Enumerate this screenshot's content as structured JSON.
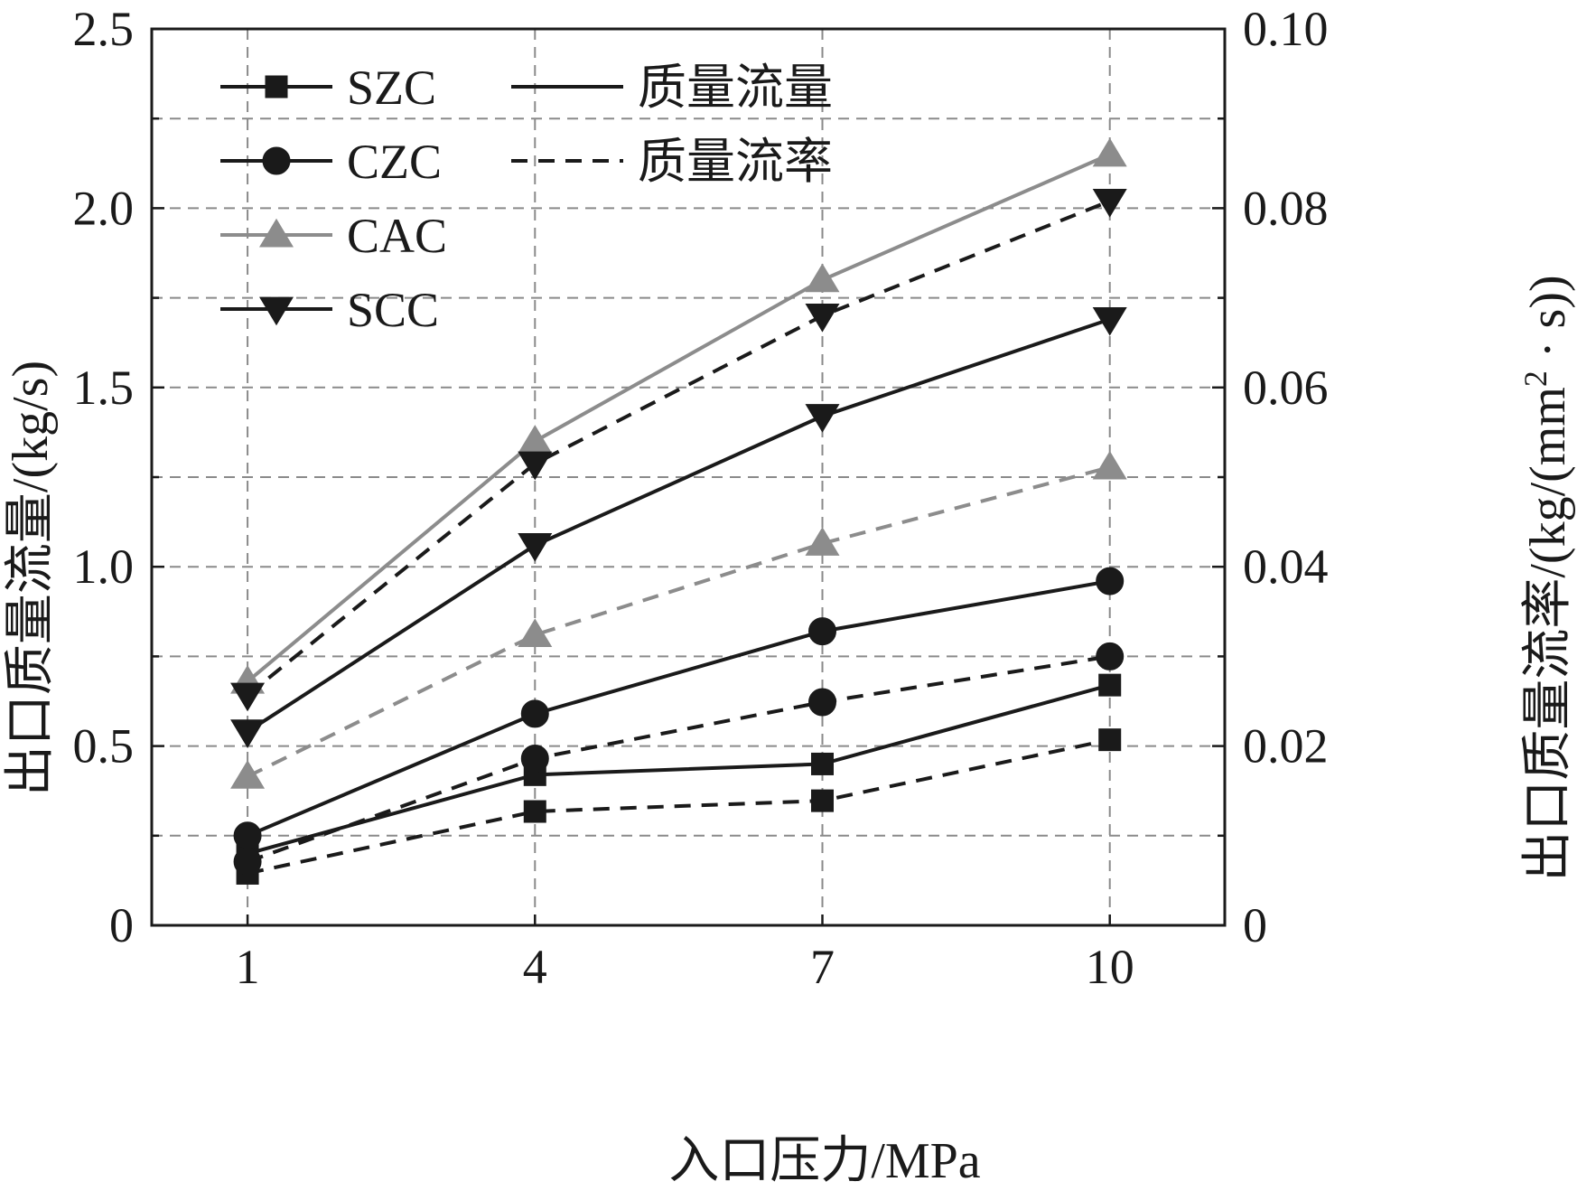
{
  "chart_data": {
    "type": "line",
    "x": [
      1,
      4,
      7,
      10
    ],
    "x_ticks": [
      "1",
      "4",
      "7",
      "10"
    ],
    "xlabel": "入口压力/MPa",
    "ylabel_left": "出口质量流量/(kg/s)",
    "ylabel_right_parts": [
      "出口质量流率/(kg/(mm",
      "2",
      " · s))"
    ],
    "ylim_left": [
      0,
      2.5
    ],
    "ylim_right": [
      0,
      0.1
    ],
    "yticks_left": [
      "0",
      "0.5",
      "1.0",
      "1.5",
      "2.0",
      "2.5"
    ],
    "yticks_right": [
      "0",
      "0.02",
      "0.04",
      "0.06",
      "0.08",
      "0.10"
    ],
    "grid": true,
    "legend_position": "top-left",
    "legend_line_styles": [
      {
        "label": "质量流量",
        "style": "solid"
      },
      {
        "label": "质量流率",
        "style": "dashed"
      }
    ],
    "series": [
      {
        "name": "SZC",
        "color": "#1a1a1a",
        "marker": "square",
        "quantity": "质量流量",
        "axis": "left",
        "dash": false,
        "values": [
          0.2,
          0.42,
          0.45,
          0.67
        ]
      },
      {
        "name": "SZC",
        "color": "#1a1a1a",
        "marker": "square",
        "quantity": "质量流率",
        "axis": "right",
        "dash": true,
        "values": [
          0.0058,
          0.0127,
          0.0139,
          0.0207
        ]
      },
      {
        "name": "CZC",
        "color": "#1a1a1a",
        "marker": "circle",
        "quantity": "质量流量",
        "axis": "left",
        "dash": false,
        "values": [
          0.25,
          0.59,
          0.82,
          0.96
        ]
      },
      {
        "name": "CZC",
        "color": "#1a1a1a",
        "marker": "circle",
        "quantity": "质量流率",
        "axis": "right",
        "dash": true,
        "values": [
          0.0071,
          0.0186,
          0.0249,
          0.03
        ]
      },
      {
        "name": "CAC",
        "color": "#8c8c8c",
        "marker": "triangle-up",
        "quantity": "质量流量",
        "axis": "left",
        "dash": false,
        "values": [
          0.68,
          1.35,
          1.8,
          2.15
        ]
      },
      {
        "name": "CAC",
        "color": "#8c8c8c",
        "marker": "triangle-up",
        "quantity": "质量流率",
        "axis": "right",
        "dash": true,
        "values": [
          0.0166,
          0.0324,
          0.0426,
          0.0511
        ]
      },
      {
        "name": "SCC",
        "color": "#1a1a1a",
        "marker": "triangle-down",
        "quantity": "质量流量",
        "axis": "left",
        "dash": false,
        "values": [
          0.54,
          1.06,
          1.42,
          1.69
        ]
      },
      {
        "name": "SCC",
        "color": "#1a1a1a",
        "marker": "triangle-down",
        "quantity": "质量流率",
        "axis": "right",
        "dash": true,
        "values": [
          0.0257,
          0.0515,
          0.068,
          0.0808
        ]
      }
    ]
  }
}
